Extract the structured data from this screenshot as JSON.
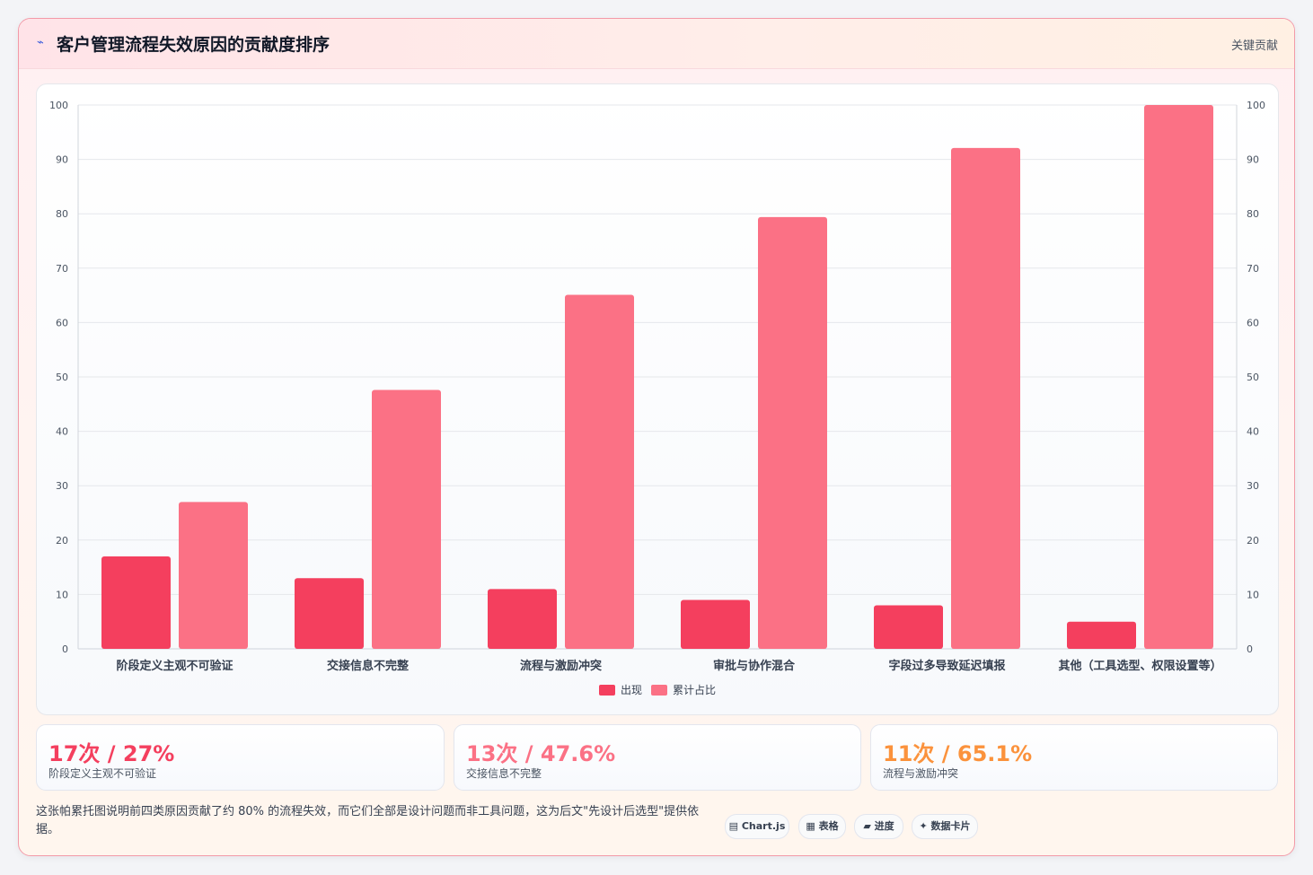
{
  "header": {
    "icon": "trend-line-icon",
    "icon_glyph": "⌁",
    "title": "客户管理流程失效原因的贡献度排序",
    "tag": "关键贡献"
  },
  "chart_data": {
    "type": "bar",
    "categories": [
      "阶段定义主观不可验证",
      "交接信息不完整",
      "流程与激励冲突",
      "审批与协作混合",
      "字段过多导致延迟填报",
      "其他（工具选型、权限设置等）"
    ],
    "series": [
      {
        "name": "出现",
        "values": [
          17,
          13,
          11,
          9,
          8,
          5
        ],
        "color": "#f43f5e"
      },
      {
        "name": "累计占比",
        "values": [
          27,
          47.6,
          65.1,
          79.4,
          92.1,
          100
        ],
        "color": "#fb7185"
      }
    ],
    "ylim": [
      0,
      100
    ],
    "y_ticks": [
      0,
      10,
      20,
      30,
      40,
      50,
      60,
      70,
      80,
      90,
      100
    ],
    "y2_ticks": [
      0,
      10,
      20,
      30,
      40,
      50,
      60,
      70,
      80,
      90,
      100
    ],
    "grid": true,
    "legend_position": "bottom"
  },
  "stats": [
    {
      "value": "17次 / 27%",
      "label": "阶段定义主观不可验证",
      "color": "#f43f5e"
    },
    {
      "value": "13次 / 47.6%",
      "label": "交接信息不完整",
      "color": "#fb7185"
    },
    {
      "value": "11次 / 65.1%",
      "label": "流程与激励冲突",
      "color": "#fb923c"
    }
  ],
  "footnote": "这张帕累托图说明前四类原因贡献了约 80% 的流程失效，而它们全部是设计问题而非工具问题，这为后文\"先设计后选型\"提供依据。",
  "tags": [
    {
      "label": "Chart.js",
      "icon": "chart-icon",
      "glyph": "▤"
    },
    {
      "label": "表格",
      "icon": "table-icon",
      "glyph": "▦"
    },
    {
      "label": "进度",
      "icon": "progress-icon",
      "glyph": "▰"
    },
    {
      "label": "数据卡片",
      "icon": "data-card-icon",
      "glyph": "✦"
    }
  ]
}
